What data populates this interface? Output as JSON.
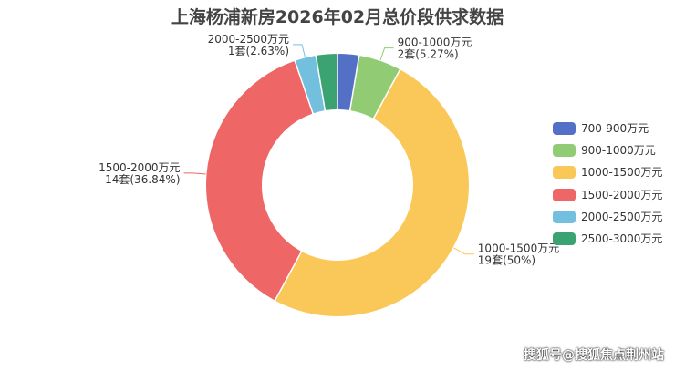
{
  "watermark": "搜狐号@搜狐焦点荆州站",
  "chart_data": {
    "type": "pie",
    "variant": "donut",
    "title": "上海杨浦新房2026年02月总价段供求数据",
    "unit": "套",
    "slices": [
      {
        "name": "700-900万元",
        "value": 1,
        "percent": "2.63%",
        "color": "#5470c6",
        "label_text": "",
        "show_label": false
      },
      {
        "name": "900-1000万元",
        "value": 2,
        "percent": "5.27%",
        "color": "#91cc75",
        "label_text": "2套(5.27%)",
        "show_label": true
      },
      {
        "name": "1000-1500万元",
        "value": 19,
        "percent": "50%",
        "color": "#fac858",
        "label_text": "19套(50%)",
        "show_label": true
      },
      {
        "name": "1500-2000万元",
        "value": 14,
        "percent": "36.84%",
        "color": "#ee6666",
        "label_text": "14套(36.84%)",
        "show_label": true
      },
      {
        "name": "2000-2500万元",
        "value": 1,
        "percent": "2.63%",
        "color": "#73c0de",
        "label_text": "1套(2.63%)",
        "show_label": true
      },
      {
        "name": "2500-3000万元",
        "value": 1,
        "percent": "2.63%",
        "color": "#3ba272",
        "label_text": "",
        "show_label": false
      }
    ],
    "legend": {
      "position": "right",
      "items": [
        "700-900万元",
        "900-1000万元",
        "1000-1500万元",
        "1500-2000万元",
        "2000-2500万元",
        "2500-3000万元"
      ]
    }
  }
}
